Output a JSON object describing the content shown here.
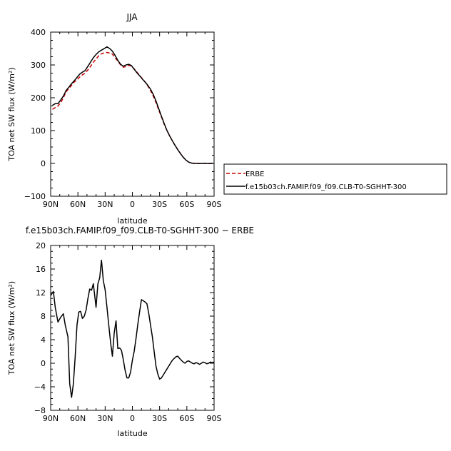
{
  "chart_data": [
    {
      "type": "line",
      "title": "JJA",
      "xlabel": "latitude",
      "ylabel": "TOA net SW flux (W/m²)",
      "xlim": [
        90,
        -90
      ],
      "ylim": [
        -100,
        400
      ],
      "x_ticks": [
        90,
        60,
        30,
        0,
        -30,
        -60,
        -90
      ],
      "x_tick_labels": [
        "90N",
        "60N",
        "30N",
        "0",
        "30S",
        "60S",
        "90S"
      ],
      "y_ticks": [
        -100,
        0,
        100,
        200,
        300,
        400
      ],
      "y_tick_labels": [
        "−100",
        "0",
        "100",
        "200",
        "300",
        "400"
      ],
      "legend_position": "right",
      "series": [
        {
          "name": "ERBE",
          "color": "#cc0000",
          "style": "dashed",
          "x": [
            88,
            85,
            82,
            79,
            76,
            73,
            70,
            67,
            64,
            61,
            58,
            55,
            52,
            49,
            46,
            43,
            40,
            37,
            34,
            31,
            28,
            25,
            22,
            19,
            16,
            13,
            10,
            7,
            4,
            1,
            -2,
            -5,
            -8,
            -11,
            -14,
            -17,
            -20,
            -23,
            -26,
            -29,
            -32,
            -35,
            -38,
            -41,
            -44,
            -47,
            -50,
            -53,
            -56,
            -59,
            -62,
            -65,
            -68,
            -71,
            -74,
            -77,
            -80,
            -83,
            -86,
            -89
          ],
          "y": [
            165,
            170,
            175,
            185,
            200,
            218,
            228,
            238,
            248,
            255,
            263,
            270,
            275,
            285,
            296,
            308,
            318,
            328,
            334,
            337,
            338,
            336,
            333,
            322,
            312,
            300,
            293,
            295,
            299,
            297,
            288,
            278,
            268,
            258,
            248,
            236,
            222,
            205,
            185,
            163,
            142,
            120,
            101,
            84,
            69,
            55,
            42,
            30,
            19,
            10,
            4,
            1,
            0,
            0,
            0,
            0,
            0,
            0,
            0,
            0
          ]
        },
        {
          "name": "f.e15b03ch.FAMIP.f09_f09.CLB-T0-SGHHT-300",
          "color": "#000000",
          "style": "solid",
          "x": [
            88,
            85,
            82,
            79,
            76,
            73,
            70,
            67,
            64,
            61,
            58,
            55,
            52,
            49,
            46,
            43,
            40,
            37,
            34,
            31,
            28,
            25,
            22,
            19,
            16,
            13,
            10,
            7,
            4,
            1,
            -2,
            -5,
            -8,
            -11,
            -14,
            -17,
            -20,
            -23,
            -26,
            -29,
            -32,
            -35,
            -38,
            -41,
            -44,
            -47,
            -50,
            -53,
            -56,
            -59,
            -62,
            -65,
            -68,
            -71,
            -74,
            -77,
            -80,
            -83,
            -86,
            -89
          ],
          "y": [
            177,
            182,
            182,
            193,
            205,
            222,
            232,
            243,
            252,
            262,
            272,
            278,
            283,
            296,
            309,
            322,
            332,
            340,
            345,
            350,
            355,
            350,
            342,
            329,
            314,
            302,
            296,
            300,
            302,
            298,
            287,
            276,
            267,
            257,
            248,
            238,
            226,
            210,
            190,
            167,
            144,
            122,
            101,
            84,
            69,
            55,
            42,
            30,
            19,
            10,
            4,
            1,
            0,
            0,
            0,
            0,
            0,
            0,
            0,
            0
          ]
        }
      ]
    },
    {
      "type": "line",
      "title": "f.e15b03ch.FAMIP.f09_f09.CLB-T0-SGHHT-300 − ERBE",
      "xlabel": "latitude",
      "ylabel": "TOA net SW flux (W/m²)",
      "xlim": [
        90,
        -90
      ],
      "ylim": [
        -8,
        20
      ],
      "x_ticks": [
        90,
        60,
        30,
        0,
        -30,
        -60,
        -90
      ],
      "x_tick_labels": [
        "90N",
        "60N",
        "30N",
        "0",
        "30S",
        "60S",
        "90S"
      ],
      "y_ticks": [
        -8,
        -4,
        0,
        4,
        8,
        12,
        16,
        20
      ],
      "y_tick_labels": [
        "−8",
        "−4",
        "0",
        "4",
        "8",
        "12",
        "16",
        "20"
      ],
      "series": [
        {
          "name": "",
          "color": "#000000",
          "style": "solid",
          "x": [
            90,
            87,
            85,
            82,
            79,
            76,
            74,
            71,
            69,
            67,
            65,
            63,
            61,
            59,
            57,
            55,
            53,
            51,
            49,
            47,
            45,
            43,
            40,
            38,
            36,
            34,
            32,
            30,
            28,
            26,
            24,
            22,
            20,
            18,
            16,
            14,
            12,
            10,
            8,
            6,
            4,
            2,
            0,
            -2,
            -4,
            -6,
            -8,
            -10,
            -12,
            -14,
            -16,
            -18,
            -20,
            -22,
            -24,
            -26,
            -28,
            -30,
            -32,
            -34,
            -36,
            -38,
            -40,
            -42,
            -44,
            -46,
            -48,
            -50,
            -52,
            -54,
            -56,
            -58,
            -60,
            -62,
            -64,
            -66,
            -68,
            -70,
            -72,
            -74,
            -76,
            -78,
            -80,
            -82,
            -84,
            -86,
            -88,
            -90
          ],
          "y": [
            11.5,
            12.2,
            9.5,
            7,
            7.8,
            8.4,
            6.5,
            4.5,
            -3.5,
            -5.8,
            -3.5,
            1,
            6.5,
            8.7,
            8.8,
            7.6,
            8,
            9,
            11,
            12.6,
            12.4,
            13.5,
            9.5,
            13.5,
            14.5,
            17.5,
            14,
            12.5,
            9.5,
            6.5,
            3.5,
            1.2,
            5.2,
            7.2,
            2.5,
            2.6,
            2.2,
            0.6,
            -1.2,
            -2.5,
            -2.5,
            -1.5,
            0.5,
            2,
            4.2,
            6.6,
            8.8,
            10.8,
            10.6,
            10.4,
            10.1,
            8.5,
            6.5,
            4.5,
            2,
            -0.5,
            -1.8,
            -2.7,
            -2.5,
            -2,
            -1.5,
            -1,
            -0.5,
            0,
            0.5,
            0.8,
            1.1,
            1.2,
            0.8,
            0.5,
            0.2,
            0,
            0.3,
            0.4,
            0.2,
            0,
            -0.1,
            0.1,
            0,
            -0.2,
            0,
            0.2,
            0.1,
            -0.1,
            0,
            0.2,
            0.1,
            0.2
          ]
        }
      ]
    }
  ]
}
